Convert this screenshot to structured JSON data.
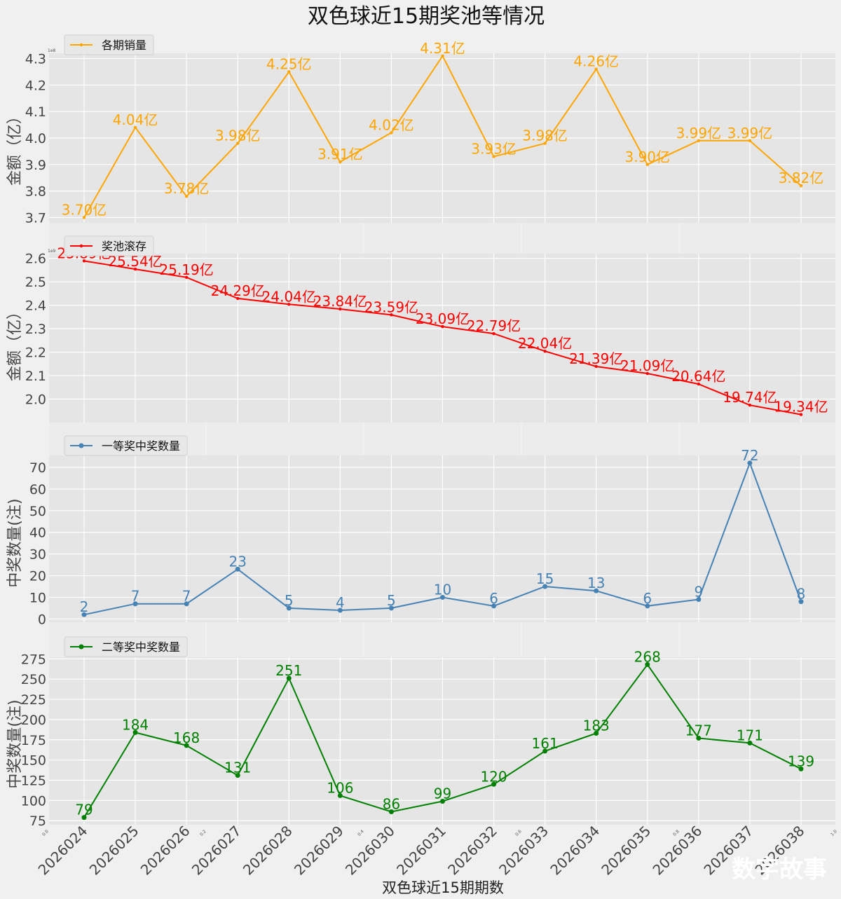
{
  "title": "双色球近15期奖池等情况",
  "xlabel": "双色球近15期期数",
  "watermark": "数字故事",
  "background_axis": {
    "ticks": [
      "0.0",
      "0.2",
      "0.4",
      "0.6",
      "0.8",
      "1.0"
    ]
  },
  "chart_data": [
    {
      "type": "line",
      "legend": "各期销量",
      "ylabel": "金额（亿）",
      "color": "#FFA500",
      "marker": "dot",
      "scale_label": "1e8",
      "ylim": [
        3.68,
        4.32
      ],
      "yticks": [
        3.7,
        3.8,
        3.9,
        4.0,
        4.1,
        4.2,
        4.3
      ],
      "ytick_labels": [
        "3.7",
        "3.8",
        "3.9",
        "4.0",
        "4.1",
        "4.2",
        "4.3"
      ],
      "values": [
        3.7,
        4.04,
        3.78,
        3.98,
        4.25,
        3.91,
        4.02,
        4.31,
        3.93,
        3.98,
        4.26,
        3.9,
        3.99,
        3.99,
        3.82
      ],
      "data_labels": [
        "3.70亿",
        "4.04亿",
        "3.78亿",
        "3.98亿",
        "4.25亿",
        "3.91亿",
        "4.02亿",
        "4.31亿",
        "3.93亿",
        "3.98亿",
        "4.26亿",
        "3.90亿",
        "3.99亿",
        "3.99亿",
        "3.82亿"
      ]
    },
    {
      "type": "line",
      "legend": "奖池滚存",
      "ylabel": "金额（亿）",
      "color": "#FF0000",
      "marker": "dot",
      "scale_label": "1e9",
      "ylim": [
        1.9,
        2.62
      ],
      "yticks": [
        2.0,
        2.1,
        2.2,
        2.3,
        2.4,
        2.5,
        2.6
      ],
      "ytick_labels": [
        "2.0",
        "2.1",
        "2.2",
        "2.3",
        "2.4",
        "2.5",
        "2.6"
      ],
      "values": [
        2.589,
        2.554,
        2.519,
        2.429,
        2.404,
        2.384,
        2.359,
        2.309,
        2.279,
        2.204,
        2.139,
        2.109,
        2.064,
        1.974,
        1.934
      ],
      "data_labels": [
        "25.89亿",
        "25.54亿",
        "25.19亿",
        "24.29亿",
        "24.04亿",
        "23.84亿",
        "23.59亿",
        "23.09亿",
        "22.79亿",
        "22.04亿",
        "21.39亿",
        "21.09亿",
        "20.64亿",
        "19.74亿",
        "19.34亿"
      ]
    },
    {
      "type": "line",
      "legend": "一等奖中奖数量",
      "ylabel": "中奖数量(注)",
      "color": "#4682B4",
      "marker": "circle",
      "ylim": [
        -1.5,
        75.5
      ],
      "yticks": [
        0,
        10,
        20,
        30,
        40,
        50,
        60,
        70
      ],
      "ytick_labels": [
        "0",
        "10",
        "20",
        "30",
        "40",
        "50",
        "60",
        "70"
      ],
      "values": [
        2,
        7,
        7,
        23,
        5,
        4,
        5,
        10,
        6,
        15,
        13,
        6,
        9,
        72,
        8
      ],
      "data_labels": [
        "2",
        "7",
        "7",
        "23",
        "5",
        "4",
        "5",
        "10",
        "6",
        "15",
        "13",
        "6",
        "9",
        "72",
        "8"
      ]
    },
    {
      "type": "line",
      "legend": "二等奖中奖数量",
      "ylabel": "中奖数量(注)",
      "color": "#008000",
      "marker": "circle",
      "ylim": [
        70,
        277
      ],
      "yticks": [
        75,
        100,
        125,
        150,
        175,
        200,
        225,
        250,
        275
      ],
      "ytick_labels": [
        "75",
        "100",
        "125",
        "150",
        "175",
        "200",
        "225",
        "250",
        "275"
      ],
      "values": [
        79,
        184,
        168,
        131,
        251,
        106,
        86,
        99,
        120,
        161,
        183,
        268,
        177,
        171,
        139
      ],
      "data_labels": [
        "79",
        "184",
        "168",
        "131",
        "251",
        "106",
        "86",
        "99",
        "120",
        "161",
        "183",
        "268",
        "177",
        "171",
        "139"
      ]
    }
  ],
  "categories": [
    "2026024",
    "2026025",
    "2026026",
    "2026027",
    "2026028",
    "2026029",
    "2026030",
    "2026031",
    "2026032",
    "2026033",
    "2026034",
    "2026035",
    "2026036",
    "2026037",
    "2026038"
  ]
}
